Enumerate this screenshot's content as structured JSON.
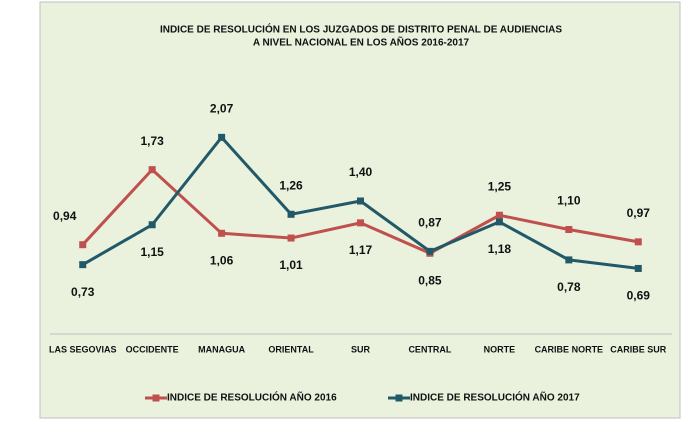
{
  "chart_data": {
    "type": "line",
    "title": "INDICE DE RESOLUCIÓN EN LOS JUZGADOS DE DISTRITO  PENAL DE AUDIENCIAS",
    "subtitle": "A NIVEL NACIONAL EN LOS AÑOS 2016-2017",
    "categories": [
      "LAS SEGOVIAS",
      "OCCIDENTE",
      "MANAGUA",
      "ORIENTAL",
      "SUR",
      "CENTRAL",
      "NORTE",
      "CARIBE NORTE",
      "CARIBE SUR"
    ],
    "series": [
      {
        "name": "INDICE DE RESOLUCIÓN AÑO 2016",
        "color": "#c0504d",
        "values": [
          0.94,
          1.73,
          1.06,
          1.01,
          1.17,
          0.85,
          1.25,
          1.1,
          0.97
        ],
        "value_labels": [
          "0,94",
          "1,73",
          "1,06",
          "1,01",
          "1,17",
          "0,85",
          "1,25",
          "1,10",
          "0,97"
        ]
      },
      {
        "name": "INDICE DE RESOLUCIÓN AÑO 2017",
        "color": "#215968",
        "values": [
          0.73,
          1.15,
          2.07,
          1.26,
          1.4,
          0.87,
          1.18,
          0.78,
          0.69
        ],
        "value_labels": [
          "0,73",
          "1,15",
          "2,07",
          "1,26",
          "1,40",
          "0,87",
          "1,18",
          "0,78",
          "0,69"
        ]
      }
    ],
    "ylim": [
      0,
      2.5
    ],
    "legend": "bottom"
  }
}
